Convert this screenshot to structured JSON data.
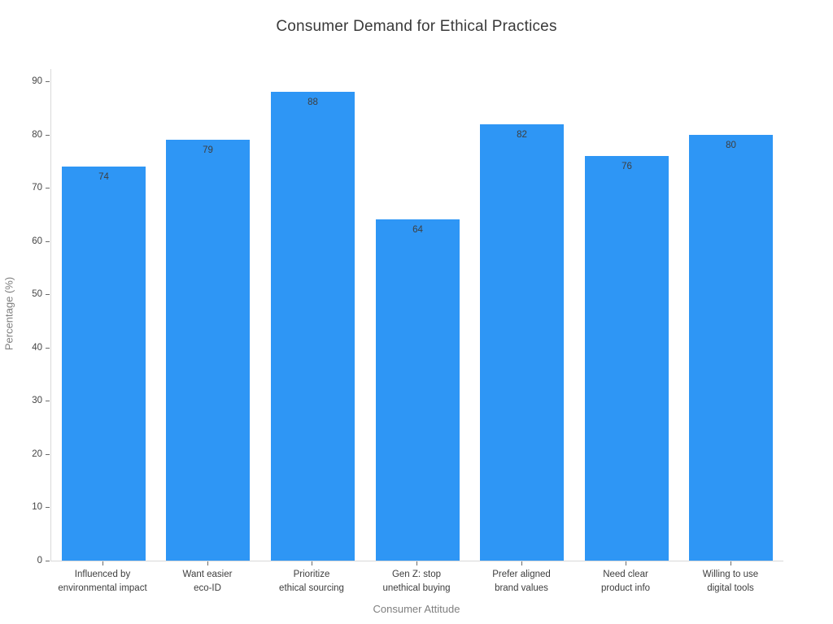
{
  "chart_data": {
    "type": "bar",
    "title": "Consumer Demand for Ethical Practices",
    "xlabel": "Consumer Attitude",
    "ylabel": "Percentage (%)",
    "categories": [
      "Influenced by\nenvironmental impact",
      "Want easier\neco-ID",
      "Prioritize\nethical sourcing",
      "Gen Z: stop\nunethical buying",
      "Prefer aligned\nbrand values",
      "Need clear\nproduct info",
      "Willing to use\ndigital tools"
    ],
    "values": [
      74,
      79,
      88,
      64,
      82,
      76,
      80
    ],
    "value_labels": [
      "74",
      "79",
      "88",
      "64",
      "82",
      "76",
      "80"
    ],
    "yticks": [
      0,
      10,
      20,
      30,
      40,
      50,
      60,
      70,
      80,
      90
    ],
    "ylim": [
      0,
      92.3
    ],
    "grid": false,
    "legend": false,
    "colors": {
      "bar": "#2E96F5",
      "title": "#3a3a3a",
      "tick_label": "#444444",
      "category_label": "#3d3d3d",
      "value_label": "#3e3e3e",
      "axis_title": "#7f7f7f",
      "spine": "#d9d9d9",
      "tick_mark": "#6b6b6b",
      "background": "#ffffff"
    }
  }
}
